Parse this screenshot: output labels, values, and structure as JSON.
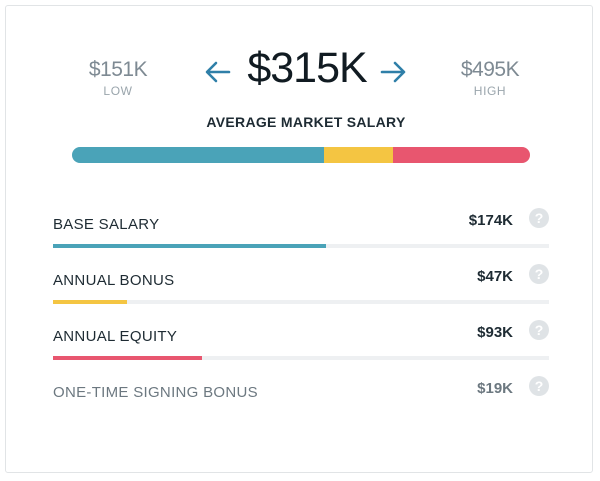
{
  "salary": {
    "low": {
      "value": "$151K",
      "label": "LOW"
    },
    "high": {
      "value": "$495K",
      "label": "HIGH"
    },
    "average": {
      "value": "$315K",
      "label": "AVERAGE MARKET SALARY"
    },
    "prev_icon": "arrow-left-icon",
    "next_icon": "arrow-right-icon"
  },
  "colors": {
    "base": "#4aa3b8",
    "bonus": "#f4c542",
    "equity": "#e8566f",
    "arrow": "#2f7fa8"
  },
  "components": [
    {
      "label": "BASE SALARY",
      "value": "$174K",
      "fraction": 0.55,
      "share": 0.55,
      "color": "#4aa3b8"
    },
    {
      "label": "ANNUAL BONUS",
      "value": "$47K",
      "fraction": 0.15,
      "share": 0.15,
      "color": "#f4c542"
    },
    {
      "label": "ANNUAL EQUITY",
      "value": "$93K",
      "fraction": 0.3,
      "share": 0.3,
      "color": "#e8566f"
    },
    {
      "label": "ONE-TIME SIGNING BONUS",
      "value": "$19K",
      "fraction": 0,
      "share": 0,
      "color": "#cfd5d9"
    }
  ],
  "help_icon": "question-circle-icon"
}
